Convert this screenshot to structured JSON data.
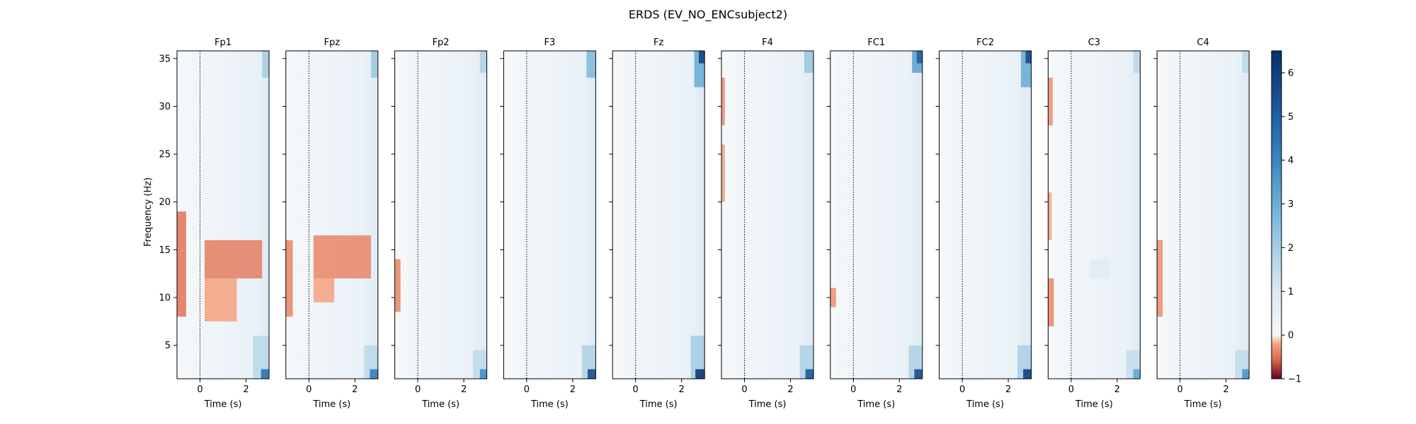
{
  "chart_data": {
    "type": "heatmap",
    "title": "ERDS (EV_NO_ENCsubject2)",
    "xlabel": "Time (s)",
    "ylabel": "Frequency (Hz)",
    "xlim": [
      -1,
      3
    ],
    "ylim": [
      1.5,
      35.8
    ],
    "x_ticks": [
      0,
      2
    ],
    "y_ticks": [
      5,
      10,
      15,
      20,
      25,
      30,
      35
    ],
    "event_marker_x": 0,
    "colorbar": {
      "vmin": -1,
      "vmax": 6.5,
      "ticks": [
        -1,
        0,
        1,
        2,
        3,
        4,
        5,
        6
      ],
      "colormap": "RdBu",
      "stops": [
        {
          "v": -1,
          "color": "#67001f"
        },
        {
          "v": -0.6,
          "color": "#d6604d"
        },
        {
          "v": -0.2,
          "color": "#f4a582"
        },
        {
          "v": 0,
          "color": "#f7f7f7"
        },
        {
          "v": 1,
          "color": "#dbe9f3"
        },
        {
          "v": 2,
          "color": "#a6cee3"
        },
        {
          "v": 3,
          "color": "#6baed6"
        },
        {
          "v": 4,
          "color": "#3a86bf"
        },
        {
          "v": 5,
          "color": "#1f5fa3"
        },
        {
          "v": 6.5,
          "color": "#08306b"
        }
      ]
    },
    "panels": [
      {
        "channel": "Fp1",
        "regions": [
          {
            "t": [
              -1,
              -0.6
            ],
            "f": [
              8,
              19
            ],
            "value": -0.45
          },
          {
            "t": [
              0.2,
              2.7
            ],
            "f": [
              12,
              16
            ],
            "value": -0.4
          },
          {
            "t": [
              0.2,
              1.6
            ],
            "f": [
              7.5,
              12
            ],
            "value": -0.2
          },
          {
            "t": [
              2.3,
              3.0
            ],
            "f": [
              1.5,
              6
            ],
            "value": 1.6
          },
          {
            "t": [
              2.65,
              3.0
            ],
            "f": [
              1.5,
              2.5
            ],
            "value": 4.5
          },
          {
            "t": [
              2.7,
              3.0
            ],
            "f": [
              33,
              35.8
            ],
            "value": 2.0
          }
        ]
      },
      {
        "channel": "Fpz",
        "regions": [
          {
            "t": [
              -1,
              -0.7
            ],
            "f": [
              8,
              16
            ],
            "value": -0.35
          },
          {
            "t": [
              0.2,
              2.7
            ],
            "f": [
              12,
              16.5
            ],
            "value": -0.35
          },
          {
            "t": [
              0.2,
              1.1
            ],
            "f": [
              9.5,
              12
            ],
            "value": -0.2
          },
          {
            "t": [
              2.4,
              3.0
            ],
            "f": [
              1.5,
              5
            ],
            "value": 1.6
          },
          {
            "t": [
              2.65,
              3.0
            ],
            "f": [
              1.5,
              2.5
            ],
            "value": 4.2
          },
          {
            "t": [
              2.7,
              3.0
            ],
            "f": [
              33,
              35.8
            ],
            "value": 2.2
          }
        ]
      },
      {
        "channel": "Fp2",
        "regions": [
          {
            "t": [
              -1,
              -0.75
            ],
            "f": [
              8.5,
              14
            ],
            "value": -0.35
          },
          {
            "t": [
              2.4,
              3.0
            ],
            "f": [
              1.5,
              4.5
            ],
            "value": 1.5
          },
          {
            "t": [
              2.7,
              3.0
            ],
            "f": [
              1.5,
              2.5
            ],
            "value": 3.8
          },
          {
            "t": [
              2.7,
              3.0
            ],
            "f": [
              33.5,
              35.8
            ],
            "value": 1.8
          }
        ]
      },
      {
        "channel": "F3",
        "regions": [
          {
            "t": [
              2.4,
              3.0
            ],
            "f": [
              1.5,
              5
            ],
            "value": 1.8
          },
          {
            "t": [
              2.65,
              3.0
            ],
            "f": [
              1.5,
              2.5
            ],
            "value": 5.5
          },
          {
            "t": [
              2.6,
              3.0
            ],
            "f": [
              33,
              35.8
            ],
            "value": 2.6
          }
        ]
      },
      {
        "channel": "Fz",
        "regions": [
          {
            "t": [
              2.4,
              3.0
            ],
            "f": [
              1.5,
              6
            ],
            "value": 2.0
          },
          {
            "t": [
              2.6,
              3.0
            ],
            "f": [
              1.5,
              2.5
            ],
            "value": 6.2
          },
          {
            "t": [
              2.55,
              3.0
            ],
            "f": [
              32,
              35.8
            ],
            "value": 3.0
          },
          {
            "t": [
              2.75,
              3.0
            ],
            "f": [
              34.5,
              35.8
            ],
            "value": 5.8
          }
        ]
      },
      {
        "channel": "F4",
        "regions": [
          {
            "t": [
              -1,
              -0.85
            ],
            "f": [
              28,
              33
            ],
            "value": -0.3
          },
          {
            "t": [
              -1,
              -0.85
            ],
            "f": [
              20,
              26
            ],
            "value": -0.2
          },
          {
            "t": [
              2.4,
              3.0
            ],
            "f": [
              1.5,
              5
            ],
            "value": 1.8
          },
          {
            "t": [
              2.65,
              3.0
            ],
            "f": [
              1.5,
              2.5
            ],
            "value": 5.2
          },
          {
            "t": [
              2.6,
              3.0
            ],
            "f": [
              33.5,
              35.8
            ],
            "value": 2.2
          }
        ]
      },
      {
        "channel": "FC1",
        "regions": [
          {
            "t": [
              -1,
              -0.75
            ],
            "f": [
              9,
              11
            ],
            "value": -0.3
          },
          {
            "t": [
              2.4,
              3.0
            ],
            "f": [
              1.5,
              5
            ],
            "value": 1.8
          },
          {
            "t": [
              2.65,
              3.0
            ],
            "f": [
              1.5,
              2.5
            ],
            "value": 5.5
          },
          {
            "t": [
              2.55,
              3.0
            ],
            "f": [
              33.5,
              35.8
            ],
            "value": 3.2
          },
          {
            "t": [
              2.75,
              3.0
            ],
            "f": [
              34.5,
              35.8
            ],
            "value": 5.0
          }
        ]
      },
      {
        "channel": "FC2",
        "regions": [
          {
            "t": [
              2.4,
              3.0
            ],
            "f": [
              1.5,
              5
            ],
            "value": 1.9
          },
          {
            "t": [
              2.65,
              3.0
            ],
            "f": [
              1.5,
              2.5
            ],
            "value": 6.0
          },
          {
            "t": [
              2.55,
              3.0
            ],
            "f": [
              32,
              35.8
            ],
            "value": 3.0
          },
          {
            "t": [
              2.75,
              3.0
            ],
            "f": [
              34.5,
              35.8
            ],
            "value": 5.6
          }
        ]
      },
      {
        "channel": "C3",
        "regions": [
          {
            "t": [
              -1,
              -0.75
            ],
            "f": [
              7,
              12
            ],
            "value": -0.35
          },
          {
            "t": [
              -1,
              -0.8
            ],
            "f": [
              28,
              33
            ],
            "value": -0.3
          },
          {
            "t": [
              -1,
              -0.85
            ],
            "f": [
              16,
              21
            ],
            "value": -0.2
          },
          {
            "t": [
              0.8,
              1.7
            ],
            "f": [
              12,
              14
            ],
            "value": 0.8
          },
          {
            "t": [
              2.4,
              3.0
            ],
            "f": [
              1.5,
              4.5
            ],
            "value": 1.4
          },
          {
            "t": [
              2.7,
              3.0
            ],
            "f": [
              1.5,
              2.5
            ],
            "value": 3.2
          },
          {
            "t": [
              2.7,
              3.0
            ],
            "f": [
              33.5,
              35.8
            ],
            "value": 1.6
          }
        ]
      },
      {
        "channel": "C4",
        "regions": [
          {
            "t": [
              -1,
              -0.75
            ],
            "f": [
              8,
              16
            ],
            "value": -0.3
          },
          {
            "t": [
              2.4,
              3.0
            ],
            "f": [
              1.5,
              4.5
            ],
            "value": 1.5
          },
          {
            "t": [
              2.7,
              3.0
            ],
            "f": [
              1.5,
              2.5
            ],
            "value": 3.6
          },
          {
            "t": [
              2.7,
              3.0
            ],
            "f": [
              33.5,
              35.8
            ],
            "value": 1.6
          }
        ]
      }
    ]
  }
}
